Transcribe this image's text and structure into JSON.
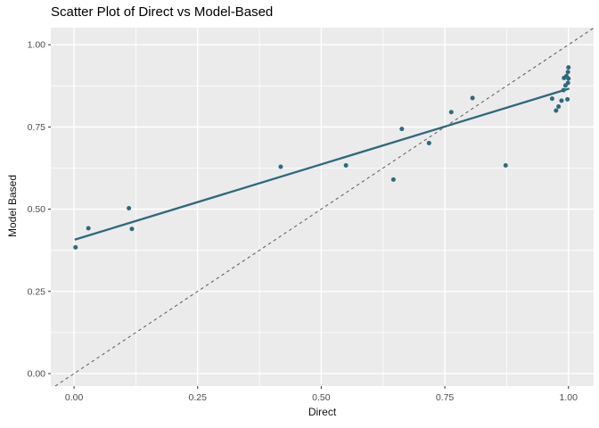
{
  "chart_data": {
    "type": "scatter",
    "title": "Scatter Plot of Direct vs Model-Based",
    "xlabel": "Direct",
    "ylabel": "Model Based",
    "xlim": [
      -0.047,
      1.051
    ],
    "ylim": [
      -0.038,
      1.052
    ],
    "grid": "on",
    "legend": "none",
    "x_ticks": [
      {
        "v": 0.0,
        "label": "0.00"
      },
      {
        "v": 0.25,
        "label": "0.25"
      },
      {
        "v": 0.5,
        "label": "0.50"
      },
      {
        "v": 0.75,
        "label": "0.75"
      },
      {
        "v": 1.0,
        "label": "1.00"
      }
    ],
    "y_ticks": [
      {
        "v": 0.0,
        "label": "0.00"
      },
      {
        "v": 0.25,
        "label": "0.25"
      },
      {
        "v": 0.5,
        "label": "0.50"
      },
      {
        "v": 0.75,
        "label": "0.75"
      },
      {
        "v": 1.0,
        "label": "1.00"
      }
    ],
    "x_minor": [
      0.125,
      0.375,
      0.625,
      0.875
    ],
    "y_minor": [
      0.125,
      0.375,
      0.625,
      0.875
    ],
    "points": [
      [
        0.003,
        0.384
      ],
      [
        0.029,
        0.442
      ],
      [
        0.111,
        0.503
      ],
      [
        0.117,
        0.44
      ],
      [
        0.418,
        0.629
      ],
      [
        0.55,
        0.633
      ],
      [
        0.646,
        0.59
      ],
      [
        0.663,
        0.744
      ],
      [
        0.718,
        0.701
      ],
      [
        0.763,
        0.795
      ],
      [
        0.806,
        0.838
      ],
      [
        0.873,
        0.633
      ],
      [
        0.967,
        0.836
      ],
      [
        0.975,
        0.8
      ],
      [
        0.98,
        0.812
      ],
      [
        0.986,
        0.83
      ],
      [
        0.99,
        0.862
      ],
      [
        0.991,
        0.899
      ],
      [
        0.994,
        0.876
      ],
      [
        0.996,
        0.905
      ],
      [
        0.998,
        0.834
      ],
      [
        0.999,
        0.884
      ],
      [
        0.999,
        0.917
      ],
      [
        1.0,
        0.897
      ],
      [
        1.0,
        0.931
      ]
    ],
    "trend_line": {
      "x1": 0.003,
      "y1": 0.408,
      "x2": 1.0,
      "y2": 0.866
    },
    "identity_line": {
      "equation": "y = x",
      "style": "dashed"
    },
    "colors": {
      "point": "#2F697A",
      "trend": "#2F697A",
      "identity": "#595959",
      "panel_bg": "#EBEBEB",
      "grid": "#FFFFFF",
      "tick_text": "#4D4D4D",
      "tick_mark": "#333333",
      "title_text": "#000000",
      "axis_title_text": "#111111"
    }
  }
}
